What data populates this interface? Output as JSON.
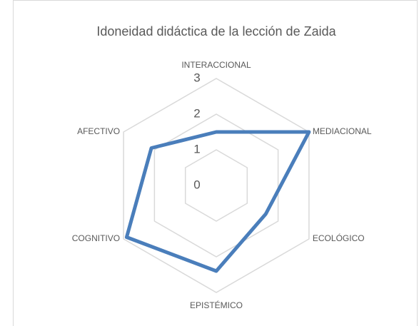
{
  "chart_data": {
    "type": "radar",
    "title": "Idoneidad didáctica de la lección de Zaida",
    "categories": [
      "INTERACCIONAL",
      "MEDIACIONAL",
      "ECOLÓGICO",
      "EPISTÉMICO",
      "COGNITIVO",
      "AFECTIVO"
    ],
    "values": [
      1.5,
      3,
      1.6,
      2.4,
      2.9,
      2.1
    ],
    "color": "#4a7ebb",
    "ylim": [
      0,
      3
    ],
    "yticks": [
      0,
      1,
      2,
      3
    ],
    "grid": true
  }
}
